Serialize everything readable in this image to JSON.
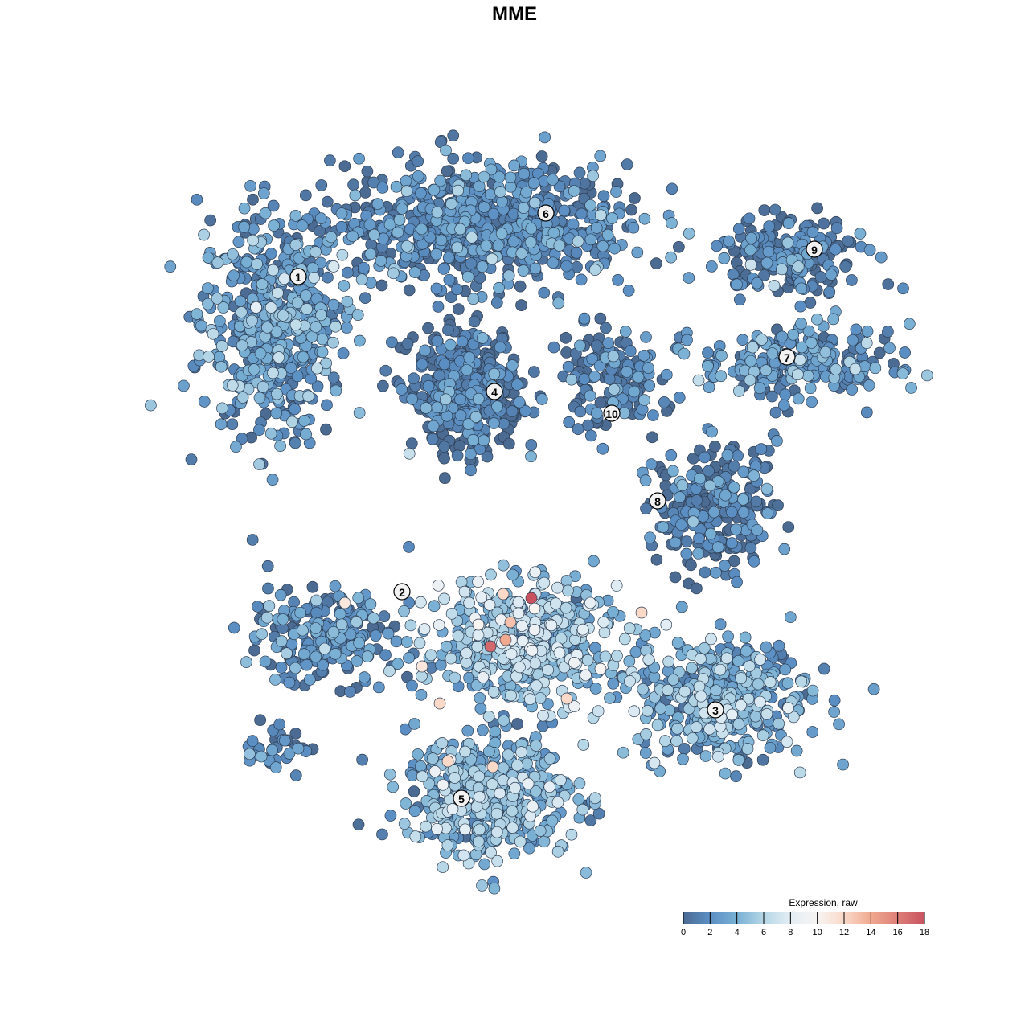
{
  "chart_data": {
    "type": "scatter",
    "title": "MME",
    "xlabel": "",
    "ylabel": "",
    "grid": false,
    "axes_visible": false,
    "legend": {
      "title": "Expression, raw",
      "placement": "bottom-right",
      "range": [
        0,
        18
      ],
      "ticks": [
        "0",
        "2",
        "4",
        "6",
        "8",
        "10",
        "12",
        "14",
        "16",
        "18"
      ],
      "colors": [
        "#4b6b93",
        "#5b8fc4",
        "#79b0d4",
        "#b5d6e6",
        "#e4eef5",
        "#f7f4f2",
        "#fad9c9",
        "#f0a98f",
        "#dd7f78",
        "#c8525f"
      ]
    },
    "point_outline": "#2e3e52",
    "clusters": [
      {
        "label": "1",
        "label_pos": [
          -26.9,
          29.6
        ],
        "center": [
          -30,
          24
        ],
        "spread": [
          6,
          9
        ],
        "n": 520,
        "mean_expr": 2.5
      },
      {
        "label": "6",
        "label_pos": [
          3.9,
          37.5
        ],
        "center": [
          -4,
          36
        ],
        "spread": [
          12,
          5
        ],
        "n": 750,
        "mean_expr": 1.3
      },
      {
        "label": "4",
        "label_pos": [
          -2.5,
          15.3
        ],
        "center": [
          -6,
          15
        ],
        "spread": [
          4.5,
          5
        ],
        "n": 420,
        "mean_expr": 0.4
      },
      {
        "label": "10",
        "label_pos": [
          12.1,
          12.6
        ],
        "center": [
          12,
          17
        ],
        "spread": [
          4,
          4
        ],
        "n": 150,
        "mean_expr": 0.6
      },
      {
        "label": "9",
        "label_pos": [
          37.3,
          33
        ],
        "center": [
          34,
          32
        ],
        "spread": [
          6,
          3
        ],
        "n": 200,
        "mean_expr": 1
      },
      {
        "label": "7",
        "label_pos": [
          33.9,
          19.6
        ],
        "center": [
          35,
          19
        ],
        "spread": [
          8,
          3
        ],
        "n": 260,
        "mean_expr": 2
      },
      {
        "label": "8",
        "label_pos": [
          17.8,
          1.7
        ],
        "center": [
          25,
          1
        ],
        "spread": [
          5,
          5
        ],
        "n": 250,
        "mean_expr": 0.7
      },
      {
        "label": "2",
        "label_pos": [
          -14,
          -9.6
        ],
        "center": [
          -24,
          -15
        ],
        "spread": [
          6,
          4
        ],
        "n": 220,
        "mean_expr": 1.5
      },
      {
        "label": "3",
        "label_pos": [
          25,
          -24.3
        ],
        "center": [
          26,
          -23
        ],
        "spread": [
          7,
          5
        ],
        "n": 420,
        "mean_expr": 3.5
      },
      {
        "label": "5",
        "label_pos": [
          -6.6,
          -35.3
        ],
        "center": [
          -3,
          -35
        ],
        "spread": [
          7,
          5
        ],
        "n": 460,
        "mean_expr": 3.8
      },
      {
        "label": "",
        "label_pos": null,
        "center": [
          1,
          -16
        ],
        "spread": [
          8,
          5
        ],
        "n": 520,
        "mean_expr": 4.8
      },
      {
        "label": "",
        "label_pos": null,
        "center": [
          -29,
          -29
        ],
        "spread": [
          3,
          2
        ],
        "n": 35,
        "mean_expr": 1.5
      }
    ],
    "highlighted_points": [
      {
        "x": 2.1,
        "y": -10.4,
        "expr": 18
      },
      {
        "x": -3,
        "y": -16.4,
        "expr": 17
      },
      {
        "x": -1.1,
        "y": -15.6,
        "expr": 14
      },
      {
        "x": -0.5,
        "y": -13.4,
        "expr": 13
      },
      {
        "x": -1.4,
        "y": -9.9,
        "expr": 12
      },
      {
        "x": 15.8,
        "y": -12.2,
        "expr": 12
      },
      {
        "x": 6.5,
        "y": -22.9,
        "expr": 12
      },
      {
        "x": -9.3,
        "y": -23.5,
        "expr": 12
      },
      {
        "x": -8.3,
        "y": -30.7,
        "expr": 12
      },
      {
        "x": -2.7,
        "y": -31.4,
        "expr": 12
      },
      {
        "x": -21.1,
        "y": -11,
        "expr": 11
      },
      {
        "x": -11.5,
        "y": -18.9,
        "expr": 11
      },
      {
        "x": 2.5,
        "y": -11.7,
        "expr": 10
      },
      {
        "x": -4.5,
        "y": -13.7,
        "expr": 10
      },
      {
        "x": 10.7,
        "y": -19.2,
        "expr": 10
      }
    ]
  }
}
